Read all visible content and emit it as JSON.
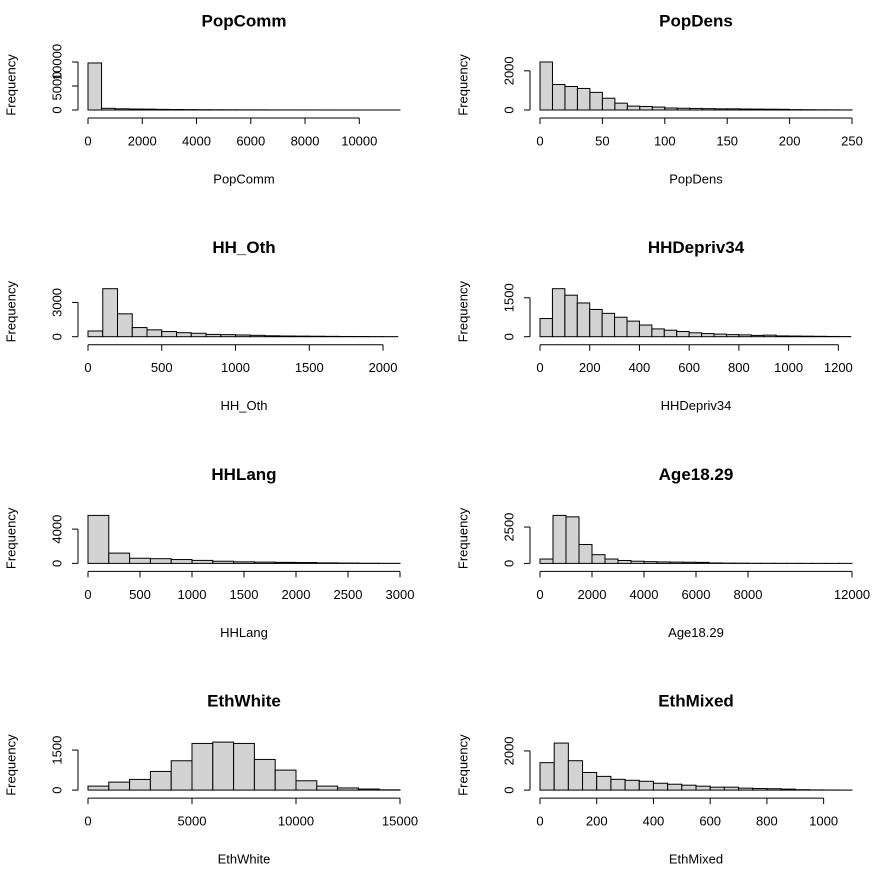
{
  "chart_data": [
    {
      "type": "histogram",
      "title": "PopComm",
      "xlabel": "PopComm",
      "ylabel": "Frequency",
      "bins": [
        0,
        500,
        1000,
        1500,
        2000,
        2500,
        3000,
        3500,
        4000,
        4500,
        5000,
        5500,
        6000,
        6500,
        7000,
        7500,
        8000,
        8500,
        9000,
        9500,
        10000,
        10500,
        11000,
        11500
      ],
      "counts": [
        9800,
        350,
        250,
        200,
        180,
        130,
        100,
        80,
        60,
        50,
        40,
        30,
        25,
        20,
        15,
        12,
        10,
        8,
        6,
        5,
        3,
        2,
        2
      ],
      "xlim": [
        0,
        11500
      ],
      "xticks": [
        0,
        2000,
        4000,
        6000,
        8000,
        10000
      ],
      "ylim": [
        0,
        10000
      ],
      "yticks": [
        0,
        5000,
        10000
      ]
    },
    {
      "type": "histogram",
      "title": "PopDens",
      "xlabel": "PopDens",
      "ylabel": "Frequency",
      "bins": [
        0,
        10,
        20,
        30,
        40,
        50,
        60,
        70,
        80,
        90,
        100,
        110,
        120,
        130,
        140,
        150,
        160,
        170,
        180,
        190,
        200,
        210,
        220,
        230,
        240,
        250
      ],
      "counts": [
        2450,
        1300,
        1200,
        1100,
        900,
        600,
        350,
        200,
        180,
        150,
        100,
        90,
        80,
        70,
        60,
        60,
        50,
        45,
        40,
        35,
        20,
        15,
        10,
        8,
        5
      ],
      "xlim": [
        0,
        250
      ],
      "xticks": [
        0,
        50,
        100,
        150,
        200,
        250
      ],
      "ylim": [
        0,
        2450
      ],
      "yticks": [
        0,
        2000
      ]
    },
    {
      "type": "histogram",
      "title": "HH_Oth",
      "xlabel": "HH_Oth",
      "ylabel": "Frequency",
      "bins": [
        0,
        100,
        200,
        300,
        400,
        500,
        600,
        700,
        800,
        900,
        1000,
        1100,
        1200,
        1300,
        1400,
        1500,
        1600,
        1700,
        1800,
        1900,
        2000,
        2100
      ],
      "counts": [
        500,
        4200,
        2000,
        800,
        600,
        450,
        350,
        300,
        200,
        180,
        150,
        120,
        80,
        60,
        50,
        40,
        30,
        20,
        15,
        10,
        5
      ],
      "xlim": [
        0,
        2115
      ],
      "xticks": [
        0,
        500,
        1000,
        1500,
        2000
      ],
      "ylim": [
        0,
        4200
      ],
      "yticks": [
        0,
        3000
      ]
    },
    {
      "type": "histogram",
      "title": "HHDepriv34",
      "xlabel": "HHDepriv34",
      "ylabel": "Frequency",
      "bins": [
        0,
        50,
        100,
        150,
        200,
        250,
        300,
        350,
        400,
        450,
        500,
        550,
        600,
        650,
        700,
        750,
        800,
        850,
        900,
        950,
        1000,
        1050,
        1100,
        1150,
        1200,
        1250
      ],
      "counts": [
        700,
        1850,
        1600,
        1300,
        1050,
        900,
        750,
        600,
        450,
        300,
        250,
        200,
        150,
        120,
        100,
        80,
        70,
        50,
        60,
        30,
        25,
        20,
        15,
        10,
        5
      ],
      "xlim": [
        0,
        1255
      ],
      "xticks": [
        0,
        200,
        400,
        600,
        800,
        1000,
        1200
      ],
      "ylim": [
        0,
        1850
      ],
      "yticks": [
        0,
        1500
      ]
    },
    {
      "type": "histogram",
      "title": "HHLang",
      "xlabel": "HHLang",
      "ylabel": "Frequency",
      "bins": [
        0,
        200,
        400,
        600,
        800,
        1000,
        1200,
        1400,
        1600,
        1800,
        2000,
        2200,
        2400,
        2600,
        2800,
        3000
      ],
      "counts": [
        5600,
        1200,
        600,
        550,
        450,
        350,
        250,
        180,
        150,
        120,
        100,
        60,
        40,
        20,
        10
      ],
      "xlim": [
        0,
        3000
      ],
      "xticks": [
        0,
        500,
        1000,
        1500,
        2000,
        2500,
        3000
      ],
      "ylim": [
        0,
        5600
      ],
      "yticks": [
        0,
        4000
      ]
    },
    {
      "type": "histogram",
      "title": "Age18.29",
      "xlabel": "Age18.29",
      "ylabel": "Frequency",
      "bins": [
        0,
        500,
        1000,
        1500,
        2000,
        2500,
        3000,
        3500,
        4000,
        4500,
        5000,
        5500,
        6000,
        6500,
        7000,
        7500,
        8000,
        8500,
        9000,
        9500,
        10000,
        10500,
        11000,
        11500,
        12000
      ],
      "counts": [
        300,
        3300,
        3200,
        1300,
        600,
        300,
        200,
        150,
        120,
        100,
        90,
        80,
        70,
        30,
        20,
        15,
        10,
        8,
        6,
        5,
        4,
        3,
        2,
        2
      ],
      "xlim": [
        0,
        12000
      ],
      "xticks": [
        0,
        2000,
        4000,
        6000,
        8000,
        12000
      ],
      "ylim": [
        0,
        3300
      ],
      "yticks": [
        0,
        2500
      ]
    },
    {
      "type": "histogram",
      "title": "EthWhite",
      "xlabel": "EthWhite",
      "ylabel": "Frequency",
      "bins": [
        0,
        1000,
        2000,
        3000,
        4000,
        5000,
        6000,
        7000,
        8000,
        9000,
        10000,
        11000,
        12000,
        13000,
        14000,
        15000
      ],
      "counts": [
        150,
        300,
        400,
        700,
        1100,
        1750,
        1800,
        1750,
        1150,
        750,
        350,
        150,
        80,
        40,
        10
      ],
      "xlim": [
        0,
        15000
      ],
      "xticks": [
        0,
        5000,
        10000,
        15000
      ],
      "ylim": [
        0,
        1800
      ],
      "yticks": [
        0,
        1500
      ]
    },
    {
      "type": "histogram",
      "title": "EthMixed",
      "xlabel": "EthMixed",
      "ylabel": "Frequency",
      "bins": [
        0,
        50,
        100,
        150,
        200,
        250,
        300,
        350,
        400,
        450,
        500,
        550,
        600,
        650,
        700,
        750,
        800,
        850,
        900,
        950,
        1000,
        1050,
        1100
      ],
      "counts": [
        1400,
        2400,
        1500,
        900,
        700,
        550,
        500,
        450,
        350,
        300,
        250,
        200,
        150,
        150,
        100,
        80,
        70,
        50,
        20,
        10,
        5,
        3
      ],
      "xlim": [
        0,
        1100
      ],
      "xticks": [
        0,
        200,
        400,
        600,
        800,
        1000
      ],
      "ylim": [
        0,
        2450
      ],
      "yticks": [
        0,
        2000
      ]
    }
  ]
}
